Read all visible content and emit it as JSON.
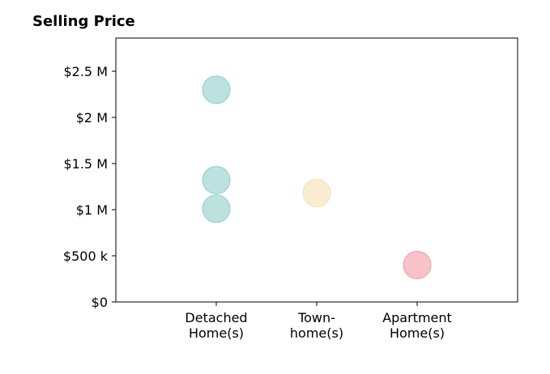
{
  "chart_data": {
    "type": "scatter",
    "title": "Selling Price",
    "xlabel": "",
    "ylabel": "",
    "categories": [
      [
        "Detached",
        "Home(s)"
      ],
      [
        "Town-",
        "home(s)"
      ],
      [
        "Apartment",
        "Home(s)"
      ]
    ],
    "xlim": [
      -1,
      3
    ],
    "ylim": [
      0,
      2860000
    ],
    "y_ticks": [
      {
        "value": 0,
        "label": "$0"
      },
      {
        "value": 500000,
        "label": "$500 k"
      },
      {
        "value": 1000000,
        "label": "$1 M"
      },
      {
        "value": 1500000,
        "label": "$1.5 M"
      },
      {
        "value": 2000000,
        "label": "$2 M"
      },
      {
        "value": 2500000,
        "label": "$2.5 M"
      }
    ],
    "grid": false,
    "points": [
      {
        "category": 0,
        "value": 2300000,
        "color": "#8ecfca"
      },
      {
        "category": 0,
        "value": 1320000,
        "color": "#8ecfca"
      },
      {
        "category": 0,
        "value": 1010000,
        "color": "#8ecfca"
      },
      {
        "category": 1,
        "value": 1180000,
        "color": "#f5dfb0"
      },
      {
        "category": 2,
        "value": 400000,
        "color": "#f19ba4"
      }
    ]
  }
}
